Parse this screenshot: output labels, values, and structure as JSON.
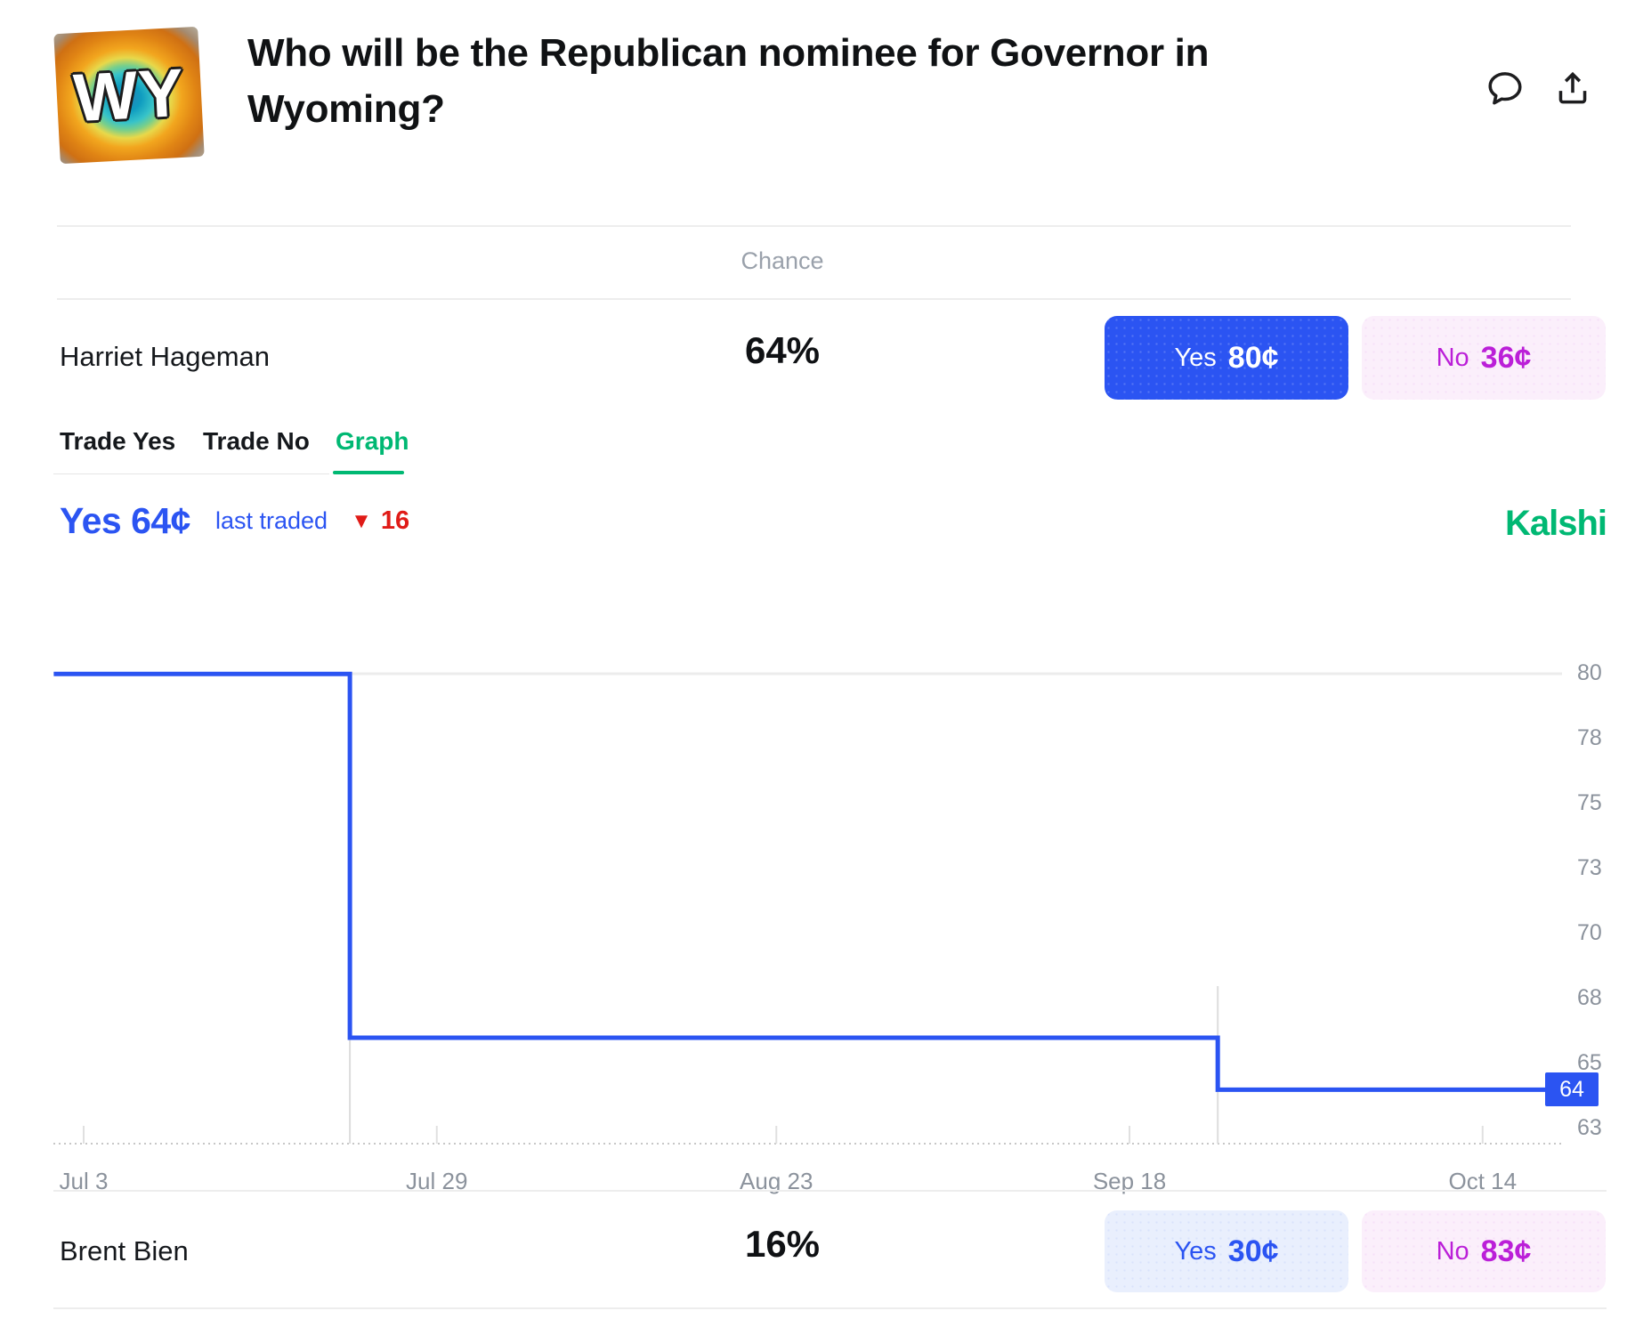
{
  "colors": {
    "accent_blue": "#2B54F2",
    "light_blue_bg": "#E9EFFD",
    "magenta": "#BB1FD8",
    "pink_bg": "#FBEFFB",
    "green": "#00B873",
    "red": "#E01B17",
    "text_dark": "#15181C",
    "text_gray": "#9AA1AB",
    "axis_gray": "#8B929C",
    "divider": "#EDEDED"
  },
  "header": {
    "market_icon_text": "WY",
    "title": "Who will be the Republican nominee for Governor in Wyoming?",
    "comment_icon": "speech-bubble-icon",
    "share_icon": "share-up-arrow-icon"
  },
  "table": {
    "chance_header": "Chance",
    "rows": [
      {
        "name": "Harriet Hageman",
        "chance": "64%",
        "yes_label": "Yes",
        "yes_price": "80¢",
        "no_label": "No",
        "no_price": "36¢"
      },
      {
        "name": "Brent Bien",
        "chance": "16%",
        "yes_label": "Yes",
        "yes_price": "30¢",
        "no_label": "No",
        "no_price": "83¢"
      }
    ]
  },
  "tabs": [
    {
      "label": "Trade Yes",
      "active": false
    },
    {
      "label": "Trade No",
      "active": false
    },
    {
      "label": "Graph",
      "active": true
    }
  ],
  "ticker": {
    "price_label": "Yes 64¢",
    "sub_label": "last traded",
    "change_direction": "down",
    "change_value": "16",
    "brand": "Kalshi"
  },
  "chart_data": {
    "type": "line",
    "title": "Yes price history (cents)",
    "style": "step",
    "grid": "top gridline at 80 and dotted baseline only",
    "legend": "none",
    "x_axis": {
      "unit": "date",
      "tick_labels": [
        "Jul 3",
        "Jul 29",
        "Aug 23",
        "Sep 18",
        "Oct 14"
      ],
      "tick_days": [
        0,
        26,
        51,
        77,
        103
      ]
    },
    "y_axis": {
      "unit": "cents",
      "range": [
        61.5,
        81
      ],
      "ticks": [
        {
          "label": "80",
          "value": 80
        },
        {
          "label": "78",
          "value": 77.5
        },
        {
          "label": "75",
          "value": 75
        },
        {
          "label": "73",
          "value": 72.5
        },
        {
          "label": "70",
          "value": 70
        },
        {
          "label": "68",
          "value": 67.5
        },
        {
          "label": "65",
          "value": 65
        },
        {
          "label": "63",
          "value": 62.5
        }
      ]
    },
    "series": [
      {
        "name": "Yes price",
        "points": [
          {
            "day": -2.2,
            "value": 80
          },
          {
            "day": 19.6,
            "value": 80
          },
          {
            "day": 19.6,
            "value": 66
          },
          {
            "day": 83.5,
            "value": 66
          },
          {
            "day": 83.5,
            "value": 64
          },
          {
            "day": 108.8,
            "value": 64
          }
        ]
      }
    ],
    "last_value_badge": {
      "label": "64",
      "value": 64
    }
  }
}
